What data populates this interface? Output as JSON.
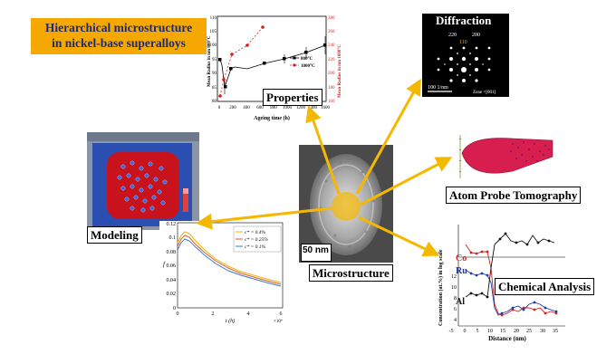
{
  "title": {
    "line1": "Hierarchical microstructure",
    "line2": "in nickel-base superalloys",
    "bg_color": "#f5a800"
  },
  "arrow_color": "#f5b800",
  "center": {
    "label": "Microstructure",
    "scalebar": "50 nm"
  },
  "properties": {
    "label": "Properties",
    "xlabel": "Ageing time (h)",
    "ylabel_left": "Mean Radius in nm 800°C",
    "ylabel_right": "Mean Radius in nm 1000°C",
    "legend": [
      "800°C",
      "1000°C"
    ],
    "x_ticks": [
      "0",
      "200",
      "400",
      "600",
      "800",
      "1000",
      "1200",
      "1400",
      "1600"
    ],
    "y_left_ticks": [
      "80",
      "85",
      "90",
      "95",
      "100",
      "105",
      "110"
    ],
    "y_right_ticks": [
      "160",
      "180",
      "200",
      "220",
      "240",
      "260",
      "280"
    ]
  },
  "diffraction": {
    "label": "Diffraction",
    "indices": [
      "220",
      "200",
      "110"
    ],
    "scalebar": "100 1/nm",
    "zone": "Zone =[001]"
  },
  "apt": {
    "label": "Atom Probe Tomography"
  },
  "modeling": {
    "label": "Modeling",
    "xlabel": "t (h)",
    "ylabel": "f",
    "x_exp": "×10⁴",
    "y_ticks": [
      "0.12",
      "0.1",
      "0.08",
      "0.06",
      "0.04",
      "0.02",
      "0"
    ],
    "x_ticks": [
      "0",
      "2",
      "4",
      "6"
    ],
    "legend": [
      "c* = 0.4%",
      "c* = 0.25%",
      "c* = 0.1%"
    ],
    "series_colors": [
      "#f0b000",
      "#e05a20",
      "#3a7ad8"
    ]
  },
  "chemical": {
    "label": "Chemical Analysis",
    "xlabel": "Distance (nm)",
    "ylabel": "Concentration (at.%) in log scale",
    "elements": [
      {
        "name": "Co",
        "color": "#d81e1e"
      },
      {
        "name": "Ru",
        "color": "#1e3aa8"
      },
      {
        "name": "Al",
        "color": "#111111"
      }
    ],
    "x_ticks": [
      "-5",
      "0",
      "5",
      "10",
      "15",
      "20",
      "25",
      "30",
      "35"
    ],
    "y_ticks": [
      "12",
      "10",
      "8",
      "6",
      "4"
    ]
  }
}
